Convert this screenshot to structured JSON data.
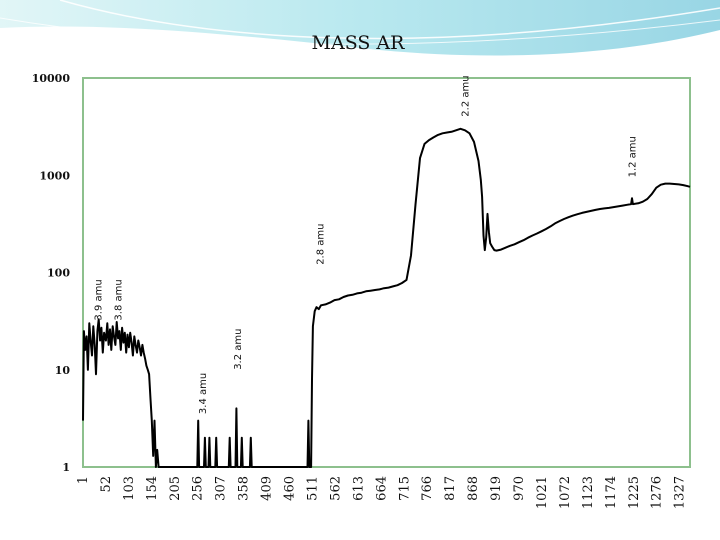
{
  "chart_data": {
    "type": "line",
    "title": "MASS AR",
    "y_scale": "log",
    "ylim": [
      1,
      10000
    ],
    "y_ticks": [
      {
        "value": 10000,
        "label": "10000"
      },
      {
        "value": 1000,
        "label": "1000"
      },
      {
        "value": 100,
        "label": "100"
      },
      {
        "value": 10,
        "label": "10"
      },
      {
        "value": 1,
        "label": "1"
      }
    ],
    "xlim": [
      1,
      1350
    ],
    "x_tick_labels": [
      "1",
      "52",
      "103",
      "154",
      "205",
      "256",
      "307",
      "358",
      "409",
      "460",
      "511",
      "562",
      "613",
      "664",
      "715",
      "766",
      "817",
      "868",
      "919",
      "970",
      "1021",
      "1072",
      "1123",
      "1174",
      "1225",
      "1276",
      "1327"
    ],
    "grid": false,
    "plot_border_color": "#8dc08d",
    "line_color": "#000000",
    "annotations": [
      {
        "text": "2.2 amu",
        "x": 849,
        "y": 4000
      },
      {
        "text": "1.2 amu",
        "x": 1220,
        "y": 950
      },
      {
        "text": "2.8 amu",
        "x": 527,
        "y": 120
      },
      {
        "text": "3.9 amu",
        "x": 33,
        "y": 32
      },
      {
        "text": "3.8 amu",
        "x": 78,
        "y": 32
      },
      {
        "text": "3.4 amu",
        "x": 265,
        "y": 3.5
      },
      {
        "text": "3.2 amu",
        "x": 343,
        "y": 10
      }
    ],
    "series": [
      {
        "values": [
          [
            1,
            3
          ],
          [
            3,
            25
          ],
          [
            6,
            16
          ],
          [
            9,
            22
          ],
          [
            12,
            10
          ],
          [
            15,
            30
          ],
          [
            18,
            20
          ],
          [
            21,
            14
          ],
          [
            24,
            28
          ],
          [
            27,
            18
          ],
          [
            30,
            9
          ],
          [
            33,
            25
          ],
          [
            36,
            33
          ],
          [
            39,
            20
          ],
          [
            42,
            27
          ],
          [
            45,
            15
          ],
          [
            48,
            24
          ],
          [
            52,
            20
          ],
          [
            55,
            30
          ],
          [
            58,
            18
          ],
          [
            61,
            26
          ],
          [
            64,
            16
          ],
          [
            67,
            28
          ],
          [
            70,
            22
          ],
          [
            73,
            18
          ],
          [
            76,
            31
          ],
          [
            79,
            21
          ],
          [
            82,
            25
          ],
          [
            85,
            16
          ],
          [
            88,
            27
          ],
          [
            91,
            19
          ],
          [
            94,
            24
          ],
          [
            97,
            15
          ],
          [
            100,
            23
          ],
          [
            103,
            17
          ],
          [
            106,
            24
          ],
          [
            109,
            19
          ],
          [
            112,
            14
          ],
          [
            115,
            22
          ],
          [
            118,
            18
          ],
          [
            121,
            15
          ],
          [
            124,
            20
          ],
          [
            127,
            17
          ],
          [
            130,
            14
          ],
          [
            133,
            18
          ],
          [
            136,
            15
          ],
          [
            139,
            13
          ],
          [
            142,
            11
          ],
          [
            145,
            10
          ],
          [
            148,
            9
          ],
          [
            151,
            5
          ],
          [
            154,
            3
          ],
          [
            157,
            1.3
          ],
          [
            160,
            3
          ],
          [
            163,
            1
          ],
          [
            166,
            1.5
          ],
          [
            169,
            1
          ],
          [
            180,
            1
          ],
          [
            200,
            1
          ],
          [
            255,
            1
          ],
          [
            257,
            3
          ],
          [
            259,
            1
          ],
          [
            270,
            1
          ],
          [
            272,
            2
          ],
          [
            274,
            1
          ],
          [
            280,
            1
          ],
          [
            282,
            2
          ],
          [
            284,
            1
          ],
          [
            295,
            1
          ],
          [
            297,
            2
          ],
          [
            299,
            1
          ],
          [
            325,
            1
          ],
          [
            327,
            2
          ],
          [
            329,
            1
          ],
          [
            340,
            1
          ],
          [
            342,
            4
          ],
          [
            344,
            1
          ],
          [
            352,
            1
          ],
          [
            354,
            2
          ],
          [
            356,
            1
          ],
          [
            372,
            1
          ],
          [
            374,
            2
          ],
          [
            376,
            1
          ],
          [
            420,
            1
          ],
          [
            500,
            1
          ],
          [
            502,
            3
          ],
          [
            504,
            1
          ],
          [
            508,
            1
          ],
          [
            510,
            8
          ],
          [
            512,
            28
          ],
          [
            516,
            40
          ],
          [
            520,
            44
          ],
          [
            525,
            42
          ],
          [
            530,
            46
          ],
          [
            540,
            47
          ],
          [
            550,
            49
          ],
          [
            560,
            52
          ],
          [
            570,
            53
          ],
          [
            580,
            56
          ],
          [
            590,
            58
          ],
          [
            600,
            59
          ],
          [
            610,
            61
          ],
          [
            620,
            62
          ],
          [
            630,
            64
          ],
          [
            640,
            65
          ],
          [
            650,
            66
          ],
          [
            660,
            67
          ],
          [
            670,
            69
          ],
          [
            680,
            70
          ],
          [
            690,
            72
          ],
          [
            700,
            74
          ],
          [
            710,
            78
          ],
          [
            720,
            84
          ],
          [
            730,
            150
          ],
          [
            740,
            500
          ],
          [
            750,
            1500
          ],
          [
            760,
            2100
          ],
          [
            770,
            2300
          ],
          [
            780,
            2450
          ],
          [
            790,
            2600
          ],
          [
            800,
            2700
          ],
          [
            810,
            2750
          ],
          [
            820,
            2800
          ],
          [
            830,
            2900
          ],
          [
            840,
            3000
          ],
          [
            850,
            2900
          ],
          [
            860,
            2700
          ],
          [
            870,
            2200
          ],
          [
            880,
            1400
          ],
          [
            885,
            900
          ],
          [
            888,
            600
          ],
          [
            891,
            240
          ],
          [
            894,
            170
          ],
          [
            897,
            230
          ],
          [
            900,
            400
          ],
          [
            903,
            260
          ],
          [
            906,
            200
          ],
          [
            910,
            185
          ],
          [
            915,
            170
          ],
          [
            920,
            168
          ],
          [
            930,
            172
          ],
          [
            940,
            180
          ],
          [
            950,
            188
          ],
          [
            960,
            195
          ],
          [
            970,
            205
          ],
          [
            980,
            215
          ],
          [
            990,
            228
          ],
          [
            1000,
            240
          ],
          [
            1010,
            252
          ],
          [
            1020,
            265
          ],
          [
            1030,
            280
          ],
          [
            1040,
            298
          ],
          [
            1050,
            320
          ],
          [
            1060,
            338
          ],
          [
            1070,
            355
          ],
          [
            1080,
            370
          ],
          [
            1090,
            385
          ],
          [
            1100,
            398
          ],
          [
            1110,
            410
          ],
          [
            1120,
            420
          ],
          [
            1130,
            430
          ],
          [
            1140,
            440
          ],
          [
            1150,
            450
          ],
          [
            1160,
            456
          ],
          [
            1170,
            462
          ],
          [
            1180,
            470
          ],
          [
            1190,
            478
          ],
          [
            1200,
            488
          ],
          [
            1210,
            497
          ],
          [
            1219,
            505
          ],
          [
            1221,
            580
          ],
          [
            1223,
            505
          ],
          [
            1235,
            515
          ],
          [
            1245,
            535
          ],
          [
            1255,
            570
          ],
          [
            1265,
            640
          ],
          [
            1275,
            745
          ],
          [
            1285,
            800
          ],
          [
            1295,
            820
          ],
          [
            1305,
            820
          ],
          [
            1315,
            812
          ],
          [
            1325,
            805
          ],
          [
            1335,
            792
          ],
          [
            1345,
            772
          ],
          [
            1350,
            760
          ]
        ]
      }
    ]
  }
}
